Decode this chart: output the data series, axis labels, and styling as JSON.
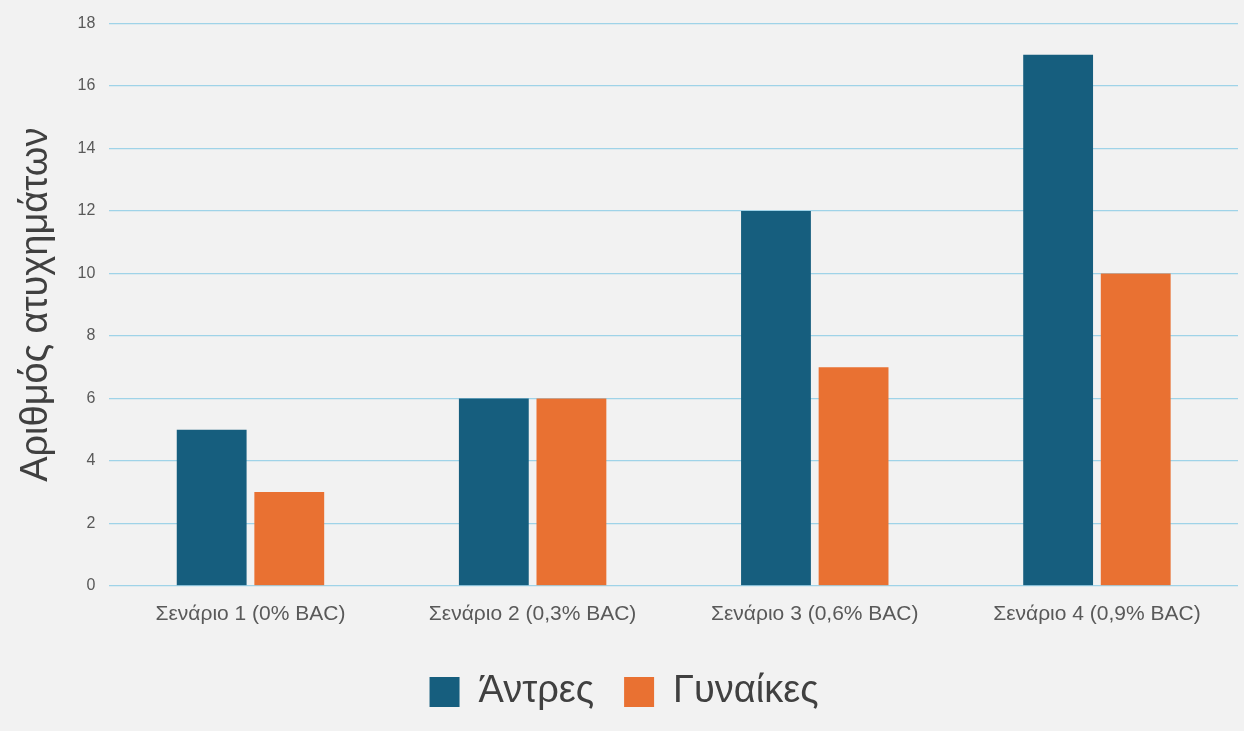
{
  "chart_data": {
    "type": "bar",
    "ylabel": "Αριθμός ατυχημάτων",
    "categories": [
      "Σενάριο 1 (0% BAC)",
      "Σενάριο 2 (0,3% BAC)",
      "Σενάριο 3 (0,6% BAC)",
      "Σενάριο 4 (0,9% BAC)"
    ],
    "series": [
      {
        "name": "Άντρες",
        "color": "#165e7e",
        "values": [
          5,
          6,
          12,
          17
        ]
      },
      {
        "name": "Γυναίκες",
        "color": "#e97132",
        "values": [
          3,
          6,
          7,
          10
        ]
      }
    ],
    "ylim": [
      0,
      18
    ],
    "yticks": [
      0,
      2,
      4,
      6,
      8,
      10,
      12,
      14,
      16,
      18
    ],
    "grid": "y",
    "legend": "bottom"
  }
}
